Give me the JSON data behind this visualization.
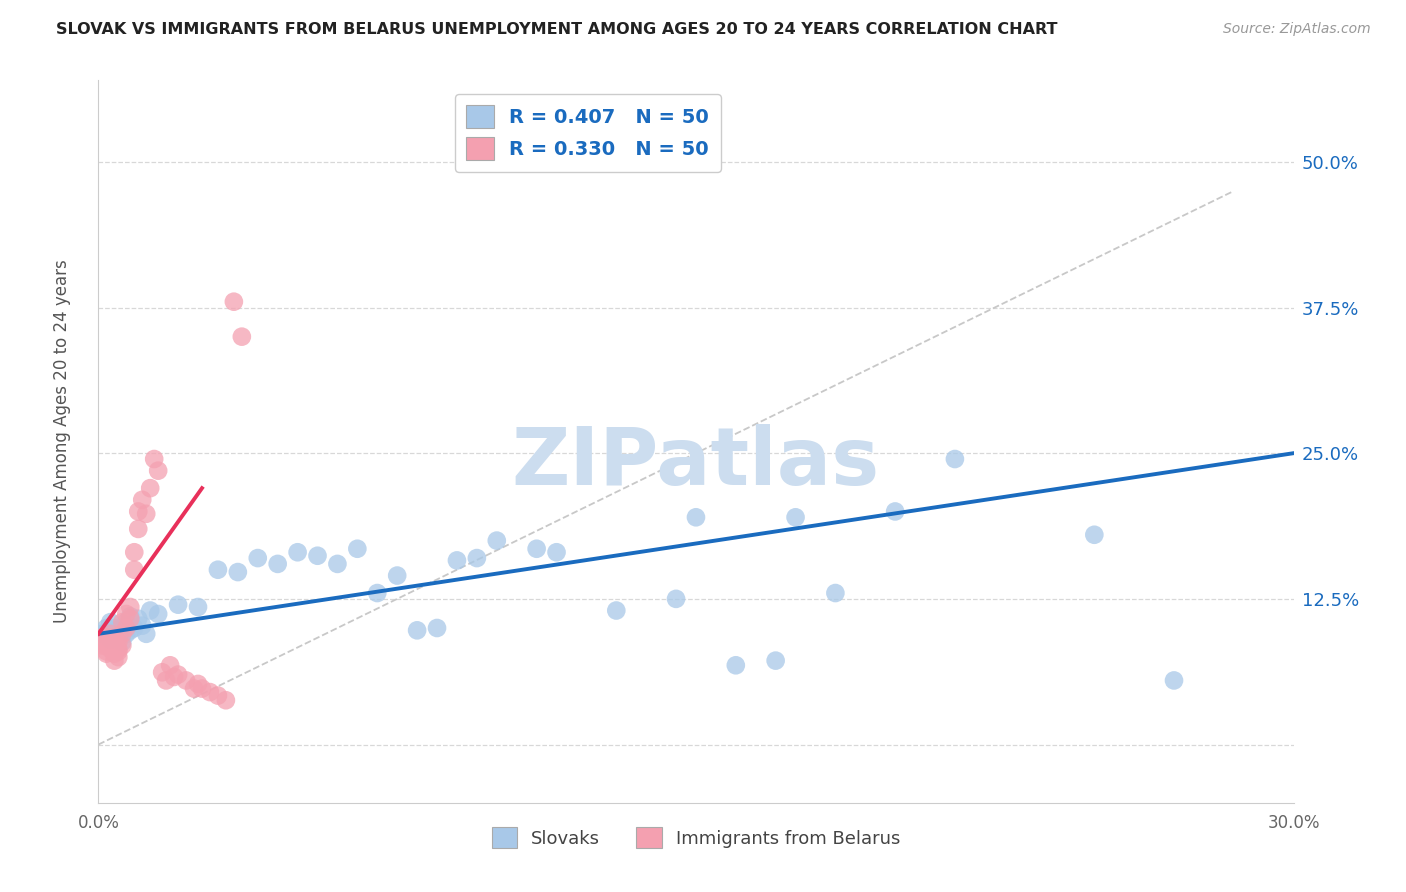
{
  "title": "SLOVAK VS IMMIGRANTS FROM BELARUS UNEMPLOYMENT AMONG AGES 20 TO 24 YEARS CORRELATION CHART",
  "source": "Source: ZipAtlas.com",
  "ylabel": "Unemployment Among Ages 20 to 24 years",
  "xlim": [
    0.0,
    0.3
  ],
  "ylim": [
    -0.05,
    0.57
  ],
  "yticks": [
    0.0,
    0.125,
    0.25,
    0.375,
    0.5
  ],
  "yticklabels": [
    "",
    "12.5%",
    "25.0%",
    "37.5%",
    "50.0%"
  ],
  "xtick_positions": [
    0.0,
    0.05,
    0.1,
    0.15,
    0.2,
    0.25,
    0.3
  ],
  "xtick_labels": [
    "0.0%",
    "",
    "",
    "",
    "",
    "",
    "30.0%"
  ],
  "watermark_text": "ZIPatlas",
  "scatter_color_blue": "#a8c8e8",
  "scatter_color_pink": "#f4a0b0",
  "line_color_blue": "#1a6bbf",
  "line_color_red": "#e8305a",
  "diag_color": "#c8c8c8",
  "grid_color": "#d8d8d8",
  "watermark_color": "#ccddef",
  "title_color": "#222222",
  "source_color": "#999999",
  "legend_r1": "R = 0.407",
  "legend_n1": "N = 50",
  "legend_r2": "R = 0.330",
  "legend_n2": "N = 50",
  "blue_line": {
    "x0": 0.0,
    "x1": 0.3,
    "y0": 0.095,
    "y1": 0.25
  },
  "red_line": {
    "x0": 0.0,
    "x1": 0.026,
    "y0": 0.095,
    "y1": 0.22
  },
  "diag_line": {
    "x0": 0.0,
    "x1": 0.285,
    "y0": 0.0,
    "y1": 0.475
  },
  "slovaks_xy": [
    [
      0.001,
      0.095
    ],
    [
      0.002,
      0.1
    ],
    [
      0.003,
      0.09
    ],
    [
      0.003,
      0.105
    ],
    [
      0.004,
      0.095
    ],
    [
      0.004,
      0.1
    ],
    [
      0.005,
      0.092
    ],
    [
      0.005,
      0.098
    ],
    [
      0.006,
      0.088
    ],
    [
      0.006,
      0.1
    ],
    [
      0.007,
      0.105
    ],
    [
      0.007,
      0.095
    ],
    [
      0.008,
      0.11
    ],
    [
      0.008,
      0.098
    ],
    [
      0.009,
      0.1
    ],
    [
      0.01,
      0.108
    ],
    [
      0.011,
      0.102
    ],
    [
      0.012,
      0.095
    ],
    [
      0.013,
      0.115
    ],
    [
      0.015,
      0.112
    ],
    [
      0.02,
      0.12
    ],
    [
      0.025,
      0.118
    ],
    [
      0.03,
      0.15
    ],
    [
      0.035,
      0.148
    ],
    [
      0.04,
      0.16
    ],
    [
      0.045,
      0.155
    ],
    [
      0.05,
      0.165
    ],
    [
      0.055,
      0.162
    ],
    [
      0.06,
      0.155
    ],
    [
      0.065,
      0.168
    ],
    [
      0.07,
      0.13
    ],
    [
      0.075,
      0.145
    ],
    [
      0.08,
      0.098
    ],
    [
      0.085,
      0.1
    ],
    [
      0.09,
      0.158
    ],
    [
      0.095,
      0.16
    ],
    [
      0.1,
      0.175
    ],
    [
      0.11,
      0.168
    ],
    [
      0.115,
      0.165
    ],
    [
      0.13,
      0.115
    ],
    [
      0.145,
      0.125
    ],
    [
      0.15,
      0.195
    ],
    [
      0.16,
      0.068
    ],
    [
      0.17,
      0.072
    ],
    [
      0.175,
      0.195
    ],
    [
      0.185,
      0.13
    ],
    [
      0.2,
      0.2
    ],
    [
      0.215,
      0.245
    ],
    [
      0.25,
      0.18
    ],
    [
      0.27,
      0.055
    ]
  ],
  "belarus_xy": [
    [
      0.001,
      0.085
    ],
    [
      0.001,
      0.09
    ],
    [
      0.001,
      0.088
    ],
    [
      0.001,
      0.092
    ],
    [
      0.002,
      0.08
    ],
    [
      0.002,
      0.092
    ],
    [
      0.002,
      0.085
    ],
    [
      0.002,
      0.078
    ],
    [
      0.003,
      0.088
    ],
    [
      0.003,
      0.095
    ],
    [
      0.003,
      0.082
    ],
    [
      0.003,
      0.09
    ],
    [
      0.004,
      0.078
    ],
    [
      0.004,
      0.085
    ],
    [
      0.004,
      0.092
    ],
    [
      0.004,
      0.072
    ],
    [
      0.005,
      0.08
    ],
    [
      0.005,
      0.088
    ],
    [
      0.005,
      0.075
    ],
    [
      0.005,
      0.082
    ],
    [
      0.006,
      0.105
    ],
    [
      0.006,
      0.095
    ],
    [
      0.006,
      0.085
    ],
    [
      0.007,
      0.112
    ],
    [
      0.007,
      0.1
    ],
    [
      0.008,
      0.118
    ],
    [
      0.008,
      0.108
    ],
    [
      0.009,
      0.165
    ],
    [
      0.009,
      0.15
    ],
    [
      0.01,
      0.2
    ],
    [
      0.01,
      0.185
    ],
    [
      0.011,
      0.21
    ],
    [
      0.012,
      0.198
    ],
    [
      0.013,
      0.22
    ],
    [
      0.014,
      0.245
    ],
    [
      0.015,
      0.235
    ],
    [
      0.016,
      0.062
    ],
    [
      0.017,
      0.055
    ],
    [
      0.018,
      0.068
    ],
    [
      0.019,
      0.058
    ],
    [
      0.02,
      0.06
    ],
    [
      0.022,
      0.055
    ],
    [
      0.024,
      0.048
    ],
    [
      0.025,
      0.052
    ],
    [
      0.026,
      0.048
    ],
    [
      0.028,
      0.045
    ],
    [
      0.03,
      0.042
    ],
    [
      0.032,
      0.038
    ],
    [
      0.034,
      0.38
    ],
    [
      0.036,
      0.35
    ]
  ]
}
